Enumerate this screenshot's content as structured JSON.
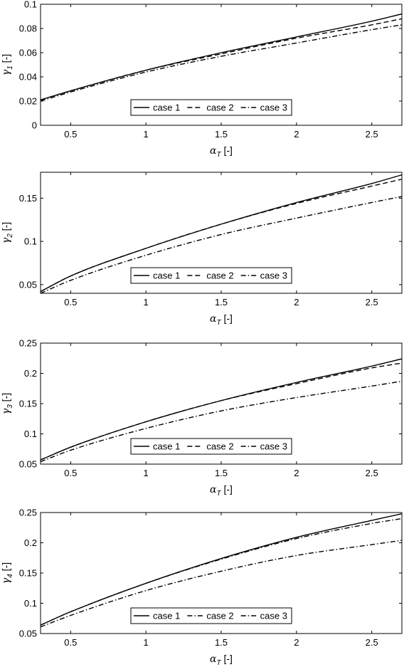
{
  "chart_data": [
    {
      "type": "line",
      "xlabel": "αT [-]",
      "ylabel": "γ1 [-]",
      "xlim": [
        0.3,
        2.7
      ],
      "ylim": [
        0,
        0.1
      ],
      "xticks": [
        "0.5",
        "1",
        "1.5",
        "2",
        "2.5"
      ],
      "xtick_values": [
        0.5,
        1,
        1.5,
        2,
        2.5
      ],
      "yticks": [
        "0",
        "0.02",
        "0.04",
        "0.06",
        "0.08",
        "0.1"
      ],
      "ytick_values": [
        0,
        0.02,
        0.04,
        0.06,
        0.08,
        0.1
      ],
      "grid": false,
      "legend": "bottom-center, horizontal",
      "x": [
        0.3,
        0.5,
        1.0,
        1.5,
        2.0,
        2.5,
        2.7
      ],
      "series": [
        {
          "name": "case 1",
          "dash": "solid",
          "values": [
            0.021,
            0.0285,
            0.0455,
            0.06,
            0.073,
            0.086,
            0.092
          ]
        },
        {
          "name": "case 2",
          "dash": "dashed",
          "values": [
            0.021,
            0.0285,
            0.0455,
            0.059,
            0.072,
            0.083,
            0.088
          ]
        },
        {
          "name": "case 3",
          "dash": "dashdot",
          "values": [
            0.02,
            0.0275,
            0.044,
            0.057,
            0.068,
            0.079,
            0.083
          ]
        }
      ]
    },
    {
      "type": "line",
      "xlabel": "αT [-]",
      "ylabel": "γ2 [-]",
      "xlim": [
        0.3,
        2.7
      ],
      "ylim": [
        0.04,
        0.18
      ],
      "xticks": [
        "0.5",
        "1",
        "1.5",
        "2",
        "2.5"
      ],
      "xtick_values": [
        0.5,
        1,
        1.5,
        2,
        2.5
      ],
      "yticks": [
        "0.05",
        "0.1",
        "0.15"
      ],
      "ytick_values": [
        0.05,
        0.1,
        0.15
      ],
      "grid": false,
      "legend": "bottom-center, horizontal",
      "x": [
        0.3,
        0.5,
        1.0,
        1.5,
        2.0,
        2.5,
        2.7
      ],
      "series": [
        {
          "name": "case 1",
          "dash": "solid",
          "values": [
            0.042,
            0.06,
            0.092,
            0.12,
            0.145,
            0.167,
            0.177
          ]
        },
        {
          "name": "case 2",
          "dash": "dashed",
          "values": [
            0.042,
            0.06,
            0.092,
            0.12,
            0.144,
            0.164,
            0.172
          ]
        },
        {
          "name": "case 3",
          "dash": "dashdot",
          "values": [
            0.04,
            0.055,
            0.084,
            0.108,
            0.127,
            0.145,
            0.152
          ]
        }
      ]
    },
    {
      "type": "line",
      "xlabel": "αT [-]",
      "ylabel": "γ3 [-]",
      "xlim": [
        0.3,
        2.7
      ],
      "ylim": [
        0.05,
        0.25
      ],
      "xticks": [
        "0.5",
        "1",
        "1.5",
        "2",
        "2.5"
      ],
      "xtick_values": [
        0.5,
        1,
        1.5,
        2,
        2.5
      ],
      "yticks": [
        "0.05",
        "0.1",
        "0.15",
        "0.2",
        "0.25"
      ],
      "ytick_values": [
        0.05,
        0.1,
        0.15,
        0.2,
        0.25
      ],
      "grid": false,
      "legend": "bottom-center, horizontal",
      "x": [
        0.3,
        0.5,
        1.0,
        1.5,
        2.0,
        2.5,
        2.7
      ],
      "series": [
        {
          "name": "case 1",
          "dash": "solid",
          "values": [
            0.057,
            0.078,
            0.12,
            0.155,
            0.185,
            0.212,
            0.224
          ]
        },
        {
          "name": "case 2",
          "dash": "dashed",
          "values": [
            0.057,
            0.078,
            0.12,
            0.155,
            0.183,
            0.209,
            0.217
          ]
        },
        {
          "name": "case 3",
          "dash": "dashdot",
          "values": [
            0.054,
            0.073,
            0.109,
            0.138,
            0.16,
            0.179,
            0.187
          ]
        }
      ]
    },
    {
      "type": "line",
      "xlabel": "αT [-]",
      "ylabel": "γ4 [-]",
      "xlim": [
        0.3,
        2.7
      ],
      "ylim": [
        0.05,
        0.25
      ],
      "xticks": [
        "0.5",
        "1",
        "1.5",
        "2",
        "2.5"
      ],
      "xtick_values": [
        0.5,
        1,
        1.5,
        2,
        2.5
      ],
      "yticks": [
        "0.05",
        "0.1",
        "0.15",
        "0.2",
        "0.25"
      ],
      "ytick_values": [
        0.05,
        0.1,
        0.15,
        0.2,
        0.25
      ],
      "grid": false,
      "legend": "bottom-center, horizontal",
      "x": [
        0.3,
        0.5,
        1.0,
        1.5,
        2.0,
        2.5,
        2.7
      ],
      "series": [
        {
          "name": "case 1",
          "dash": "solid",
          "values": [
            0.064,
            0.086,
            0.133,
            0.174,
            0.209,
            0.237,
            0.248
          ]
        },
        {
          "name": "case 2",
          "dash": "dashdot",
          "values": [
            0.064,
            0.086,
            0.133,
            0.173,
            0.207,
            0.232,
            0.24
          ]
        },
        {
          "name": "case 3",
          "dash": "dashdot",
          "values": [
            0.061,
            0.08,
            0.121,
            0.153,
            0.179,
            0.197,
            0.204
          ]
        }
      ]
    }
  ]
}
